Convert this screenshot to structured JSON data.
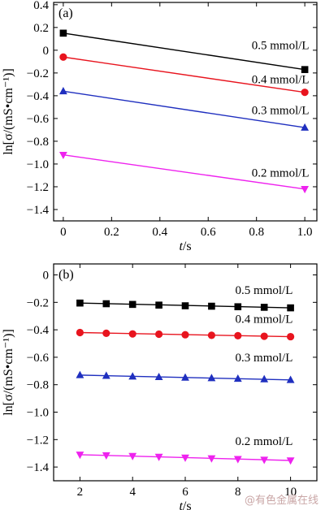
{
  "watermark": "@有色金属在线",
  "chart_data": [
    {
      "type": "scatter",
      "panel_label": "(a)",
      "xlabel_italic": "t",
      "xlabel_unit": "/s",
      "ylabel": "ln[σ/(mS•cm⁻¹)]",
      "xlim": [
        -0.04,
        1.05
      ],
      "ylim": [
        -1.5,
        0.42
      ],
      "xticks": [
        0,
        0.2,
        0.4,
        0.6,
        0.8,
        1.0
      ],
      "xtick_labels": [
        "0",
        "0.2",
        "0.4",
        "0.6",
        "0.8",
        "1.0"
      ],
      "yticks": [
        0.4,
        0.2,
        0,
        -0.2,
        -0.4,
        -0.6,
        -0.8,
        -1.0,
        -1.2,
        -1.4
      ],
      "ytick_labels": [
        "0.4",
        "0.2",
        "0",
        "−0.2",
        "−0.4",
        "−0.6",
        "−0.8",
        "−1.0",
        "−1.2",
        "−1.4"
      ],
      "series": [
        {
          "name": "0.5 mmol/L",
          "color": "#000000",
          "marker": "square",
          "x": [
            0,
            1.0
          ],
          "y": [
            0.15,
            -0.17
          ],
          "label_at": [
            0.78,
            0.01
          ]
        },
        {
          "name": "0.4 mmol/L",
          "color": "#e8141e",
          "marker": "circle",
          "x": [
            0,
            1.0
          ],
          "y": [
            -0.06,
            -0.37
          ],
          "label_at": [
            0.78,
            -0.29
          ]
        },
        {
          "name": "0.3 mmol/L",
          "color": "#1f2fbf",
          "marker": "triangle-up",
          "x": [
            0,
            1.0
          ],
          "y": [
            -0.36,
            -0.68
          ],
          "label_at": [
            0.78,
            -0.56
          ]
        },
        {
          "name": "0.2 mmol/L",
          "color": "#ee22ee",
          "marker": "triangle-down",
          "x": [
            0,
            1.0
          ],
          "y": [
            -0.92,
            -1.22
          ],
          "label_at": [
            0.78,
            -1.11
          ]
        }
      ]
    },
    {
      "type": "scatter",
      "panel_label": "(b)",
      "xlabel_italic": "t",
      "xlabel_unit": "/s",
      "ylabel": "ln[σ/(mS•cm⁻¹)]",
      "xlim": [
        1.0,
        11.0
      ],
      "ylim": [
        -1.5,
        0.08
      ],
      "xticks": [
        2,
        4,
        6,
        8,
        10
      ],
      "xtick_labels": [
        "2",
        "4",
        "6",
        "8",
        "10"
      ],
      "yticks": [
        0,
        -0.2,
        -0.4,
        -0.6,
        -0.8,
        -1.0,
        -1.2,
        -1.4
      ],
      "ytick_labels": [
        "0",
        "−0.2",
        "−0.4",
        "−0.6",
        "−0.8",
        "−1.0",
        "−1.2",
        "−1.4"
      ],
      "series": [
        {
          "name": "0.5 mmol/L",
          "color": "#000000",
          "marker": "square",
          "x": [
            2,
            3,
            4,
            5,
            6,
            7,
            8,
            9,
            10
          ],
          "y": [
            -0.205,
            -0.21,
            -0.215,
            -0.22,
            -0.225,
            -0.228,
            -0.232,
            -0.236,
            -0.24
          ],
          "label_at": [
            7.9,
            -0.14
          ]
        },
        {
          "name": "0.4 mmol/L",
          "color": "#e8141e",
          "marker": "circle",
          "x": [
            2,
            3,
            4,
            5,
            6,
            7,
            8,
            9,
            10
          ],
          "y": [
            -0.42,
            -0.425,
            -0.43,
            -0.432,
            -0.436,
            -0.44,
            -0.443,
            -0.447,
            -0.45
          ],
          "label_at": [
            7.9,
            -0.35
          ]
        },
        {
          "name": "0.3 mmol/L",
          "color": "#1f2fbf",
          "marker": "triangle-up",
          "x": [
            2,
            3,
            4,
            5,
            6,
            7,
            8,
            9,
            10
          ],
          "y": [
            -0.73,
            -0.735,
            -0.74,
            -0.744,
            -0.748,
            -0.752,
            -0.756,
            -0.76,
            -0.765
          ],
          "label_at": [
            7.9,
            -0.63
          ]
        },
        {
          "name": "0.2 mmol/L",
          "color": "#ee22ee",
          "marker": "triangle-down",
          "x": [
            2,
            3,
            4,
            5,
            6,
            7,
            8,
            9,
            10
          ],
          "y": [
            -1.31,
            -1.315,
            -1.32,
            -1.326,
            -1.332,
            -1.337,
            -1.342,
            -1.347,
            -1.352
          ],
          "label_at": [
            7.9,
            -1.24
          ]
        }
      ]
    }
  ]
}
